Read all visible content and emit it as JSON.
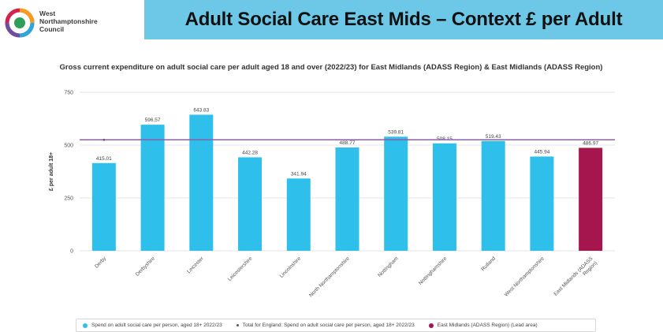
{
  "header": {
    "logo_lines": [
      "West",
      "Northamptonshire",
      "Council"
    ],
    "title": "Adult Social Care East Mids – Context £ per Adult"
  },
  "colors": {
    "banner": "#6cc8e6",
    "bar": "#2ec0ea",
    "lead_bar": "#a5154e",
    "england_line": "#8b5fa8"
  },
  "chart_data": {
    "type": "bar",
    "title": "Gross current expenditure on adult social care per adult aged 18 and over (2022/23) for East Midlands (ADASS Region) & East Midlands (ADASS Region)",
    "ylabel": "£ per adult 18+",
    "xlabel": "",
    "ylim": [
      0,
      750
    ],
    "yticks": [
      0,
      250,
      500,
      750
    ],
    "categories": [
      "Derby",
      "Derbyshire",
      "Leicester",
      "Leicestershire",
      "Lincolnshire",
      "North Northamptonshire",
      "Nottingham",
      "Nottinghamshire",
      "Rutland",
      "West Northamptonshire",
      "East Midlands (ADASS Region)"
    ],
    "values": [
      415.01,
      596.57,
      643.83,
      442.28,
      341.94,
      488.77,
      539.81,
      508.15,
      519.43,
      445.94,
      486.97
    ],
    "value_labels": [
      "415.01",
      "596.57",
      "643.83",
      "442.28",
      "341.94",
      "488.77",
      "539.81",
      "508.15",
      "519.43",
      "445.94",
      "486.97"
    ],
    "lead_index": 10,
    "england_value": 525,
    "legend": [
      "Spend on adult social care per person, aged 18+ 2022/23",
      "Total for England: Spend on adult social care per person, aged 18+ 2022/23",
      "East Midlands (ADASS Region) (Lead area)"
    ],
    "legend_placement": "bottom",
    "grid": true
  }
}
